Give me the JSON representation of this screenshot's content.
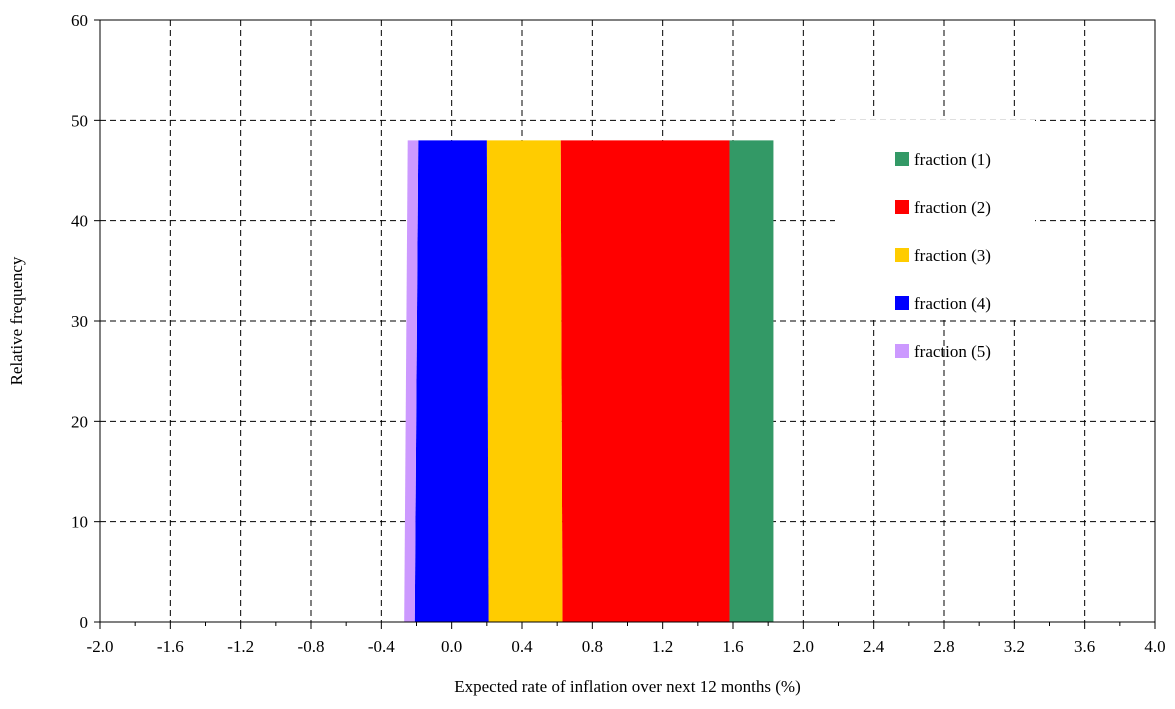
{
  "chart_data": {
    "type": "area",
    "xlabel": "Expected rate of inflation over next 12 months (%)",
    "ylabel": "Relative frequency",
    "xlim": [
      -2.0,
      4.0
    ],
    "ylim": [
      0,
      60
    ],
    "x_ticks": [
      "-2.0",
      "-1.6",
      "-1.2",
      "-0.8",
      "-0.4",
      "0.0",
      "0.4",
      "0.8",
      "1.2",
      "1.6",
      "2.0",
      "2.4",
      "2.8",
      "3.2",
      "3.6",
      "4.0"
    ],
    "x_tick_values": [
      -2.0,
      -1.6,
      -1.2,
      -0.8,
      -0.4,
      0.0,
      0.4,
      0.8,
      1.2,
      1.6,
      2.0,
      2.4,
      2.8,
      3.2,
      3.6,
      4.0
    ],
    "y_ticks": [
      "0",
      "10",
      "20",
      "30",
      "40",
      "50",
      "60"
    ],
    "y_tick_values": [
      0,
      10,
      20,
      30,
      40,
      50,
      60
    ],
    "grid": true,
    "legend_position": "top-right",
    "series": [
      {
        "name": "fraction (1)",
        "color": "#339966",
        "bottom_range": [
          1.58,
          1.83
        ],
        "top_range": [
          1.58,
          1.83
        ],
        "value": 48
      },
      {
        "name": "fraction (2)",
        "color": "#ff0000",
        "bottom_range": [
          0.63,
          1.58
        ],
        "top_range": [
          0.62,
          1.58
        ],
        "value": 48
      },
      {
        "name": "fraction (3)",
        "color": "#ffcc00",
        "bottom_range": [
          0.21,
          0.63
        ],
        "top_range": [
          0.2,
          0.62
        ],
        "value": 48
      },
      {
        "name": "fraction (4)",
        "color": "#0000ff",
        "bottom_range": [
          -0.21,
          0.21
        ],
        "top_range": [
          -0.19,
          0.2
        ],
        "value": 48
      },
      {
        "name": "fraction (5)",
        "color": "#cc99ff",
        "bottom_range": [
          -0.27,
          -0.21
        ],
        "top_range": [
          -0.25,
          -0.19
        ],
        "value": 48
      }
    ]
  }
}
